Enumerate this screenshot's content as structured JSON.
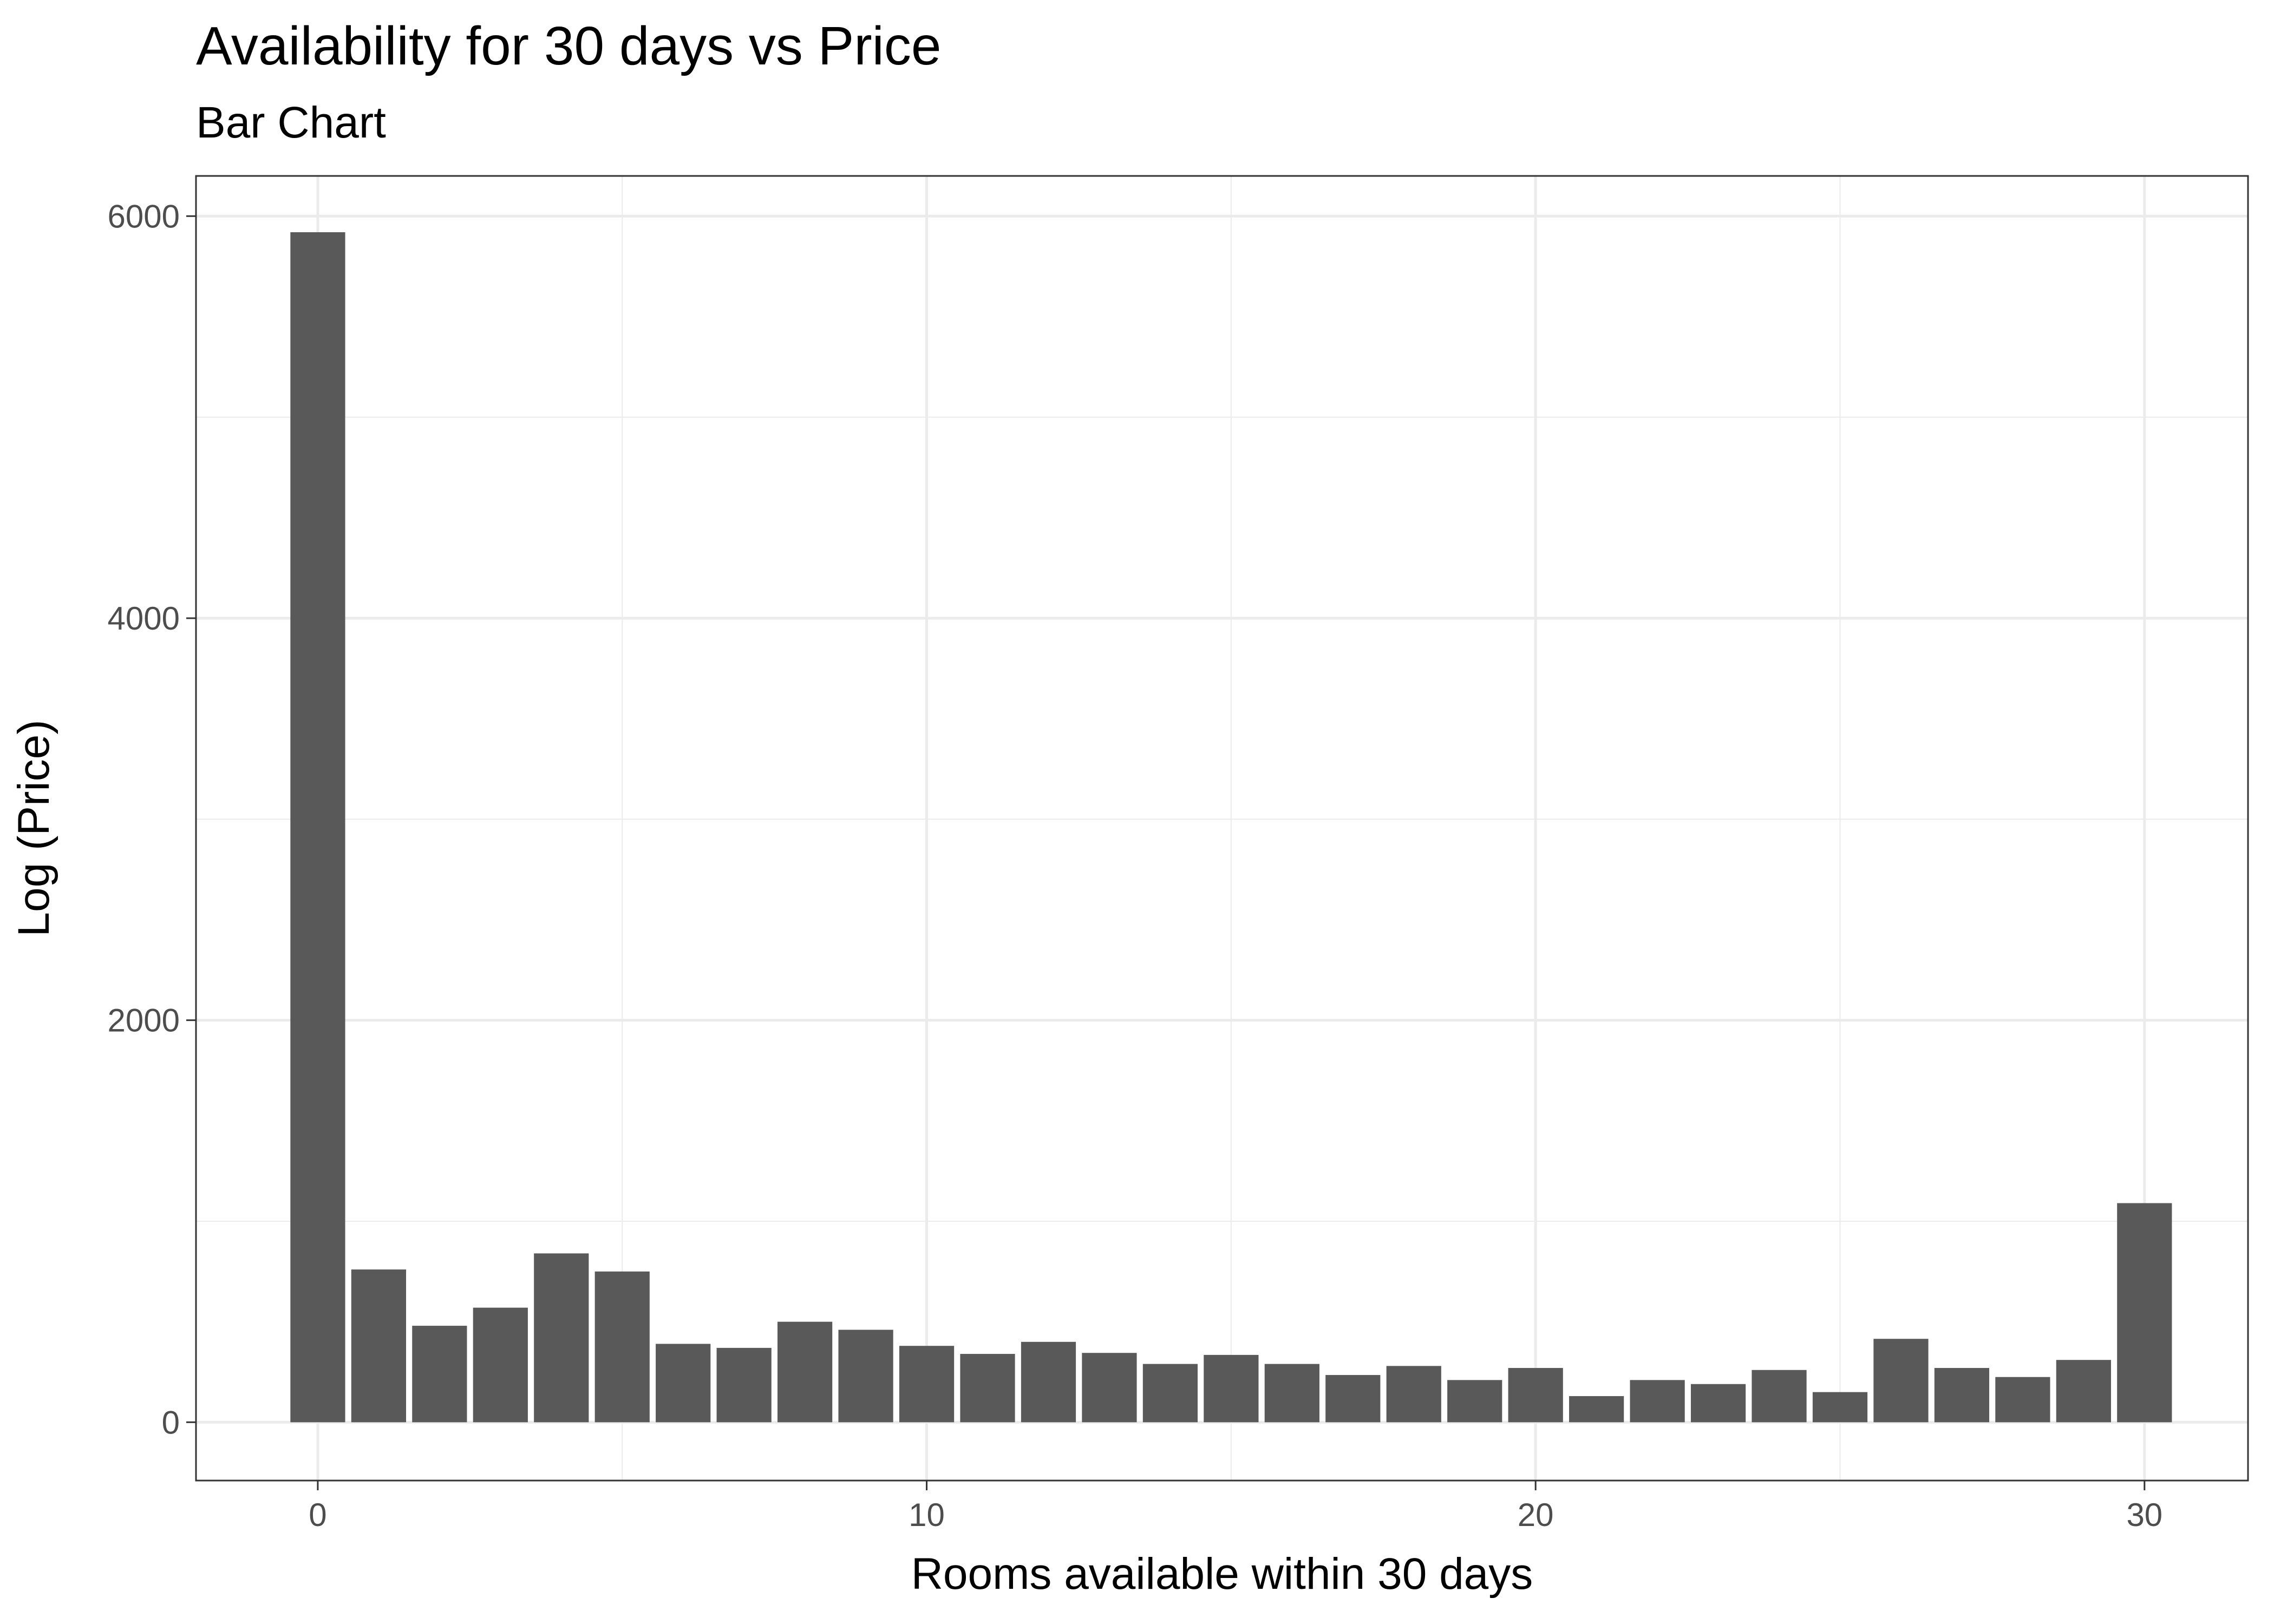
{
  "chart_data": {
    "type": "bar",
    "title": "Availability for 30 days vs Price",
    "subtitle": "Bar Chart",
    "xlabel": "Rooms available within 30 days",
    "ylabel": "Log (Price)",
    "x_ticks": [
      0,
      10,
      20,
      30
    ],
    "y_ticks": [
      0,
      2000,
      4000,
      6000
    ],
    "xlim": [
      -2,
      31.7
    ],
    "ylim": [
      -290,
      6200
    ],
    "grid": true,
    "legend": "none",
    "bar_color": "#595959",
    "x": [
      0,
      1,
      2,
      3,
      4,
      5,
      6,
      7,
      8,
      9,
      10,
      11,
      12,
      13,
      14,
      15,
      16,
      17,
      18,
      19,
      20,
      21,
      22,
      23,
      24,
      25,
      26,
      27,
      28,
      29,
      30
    ],
    "values": [
      5920,
      760,
      480,
      570,
      840,
      750,
      390,
      370,
      500,
      460,
      380,
      340,
      400,
      345,
      290,
      335,
      290,
      235,
      280,
      210,
      270,
      130,
      210,
      190,
      260,
      150,
      415,
      270,
      225,
      310,
      1090
    ]
  }
}
